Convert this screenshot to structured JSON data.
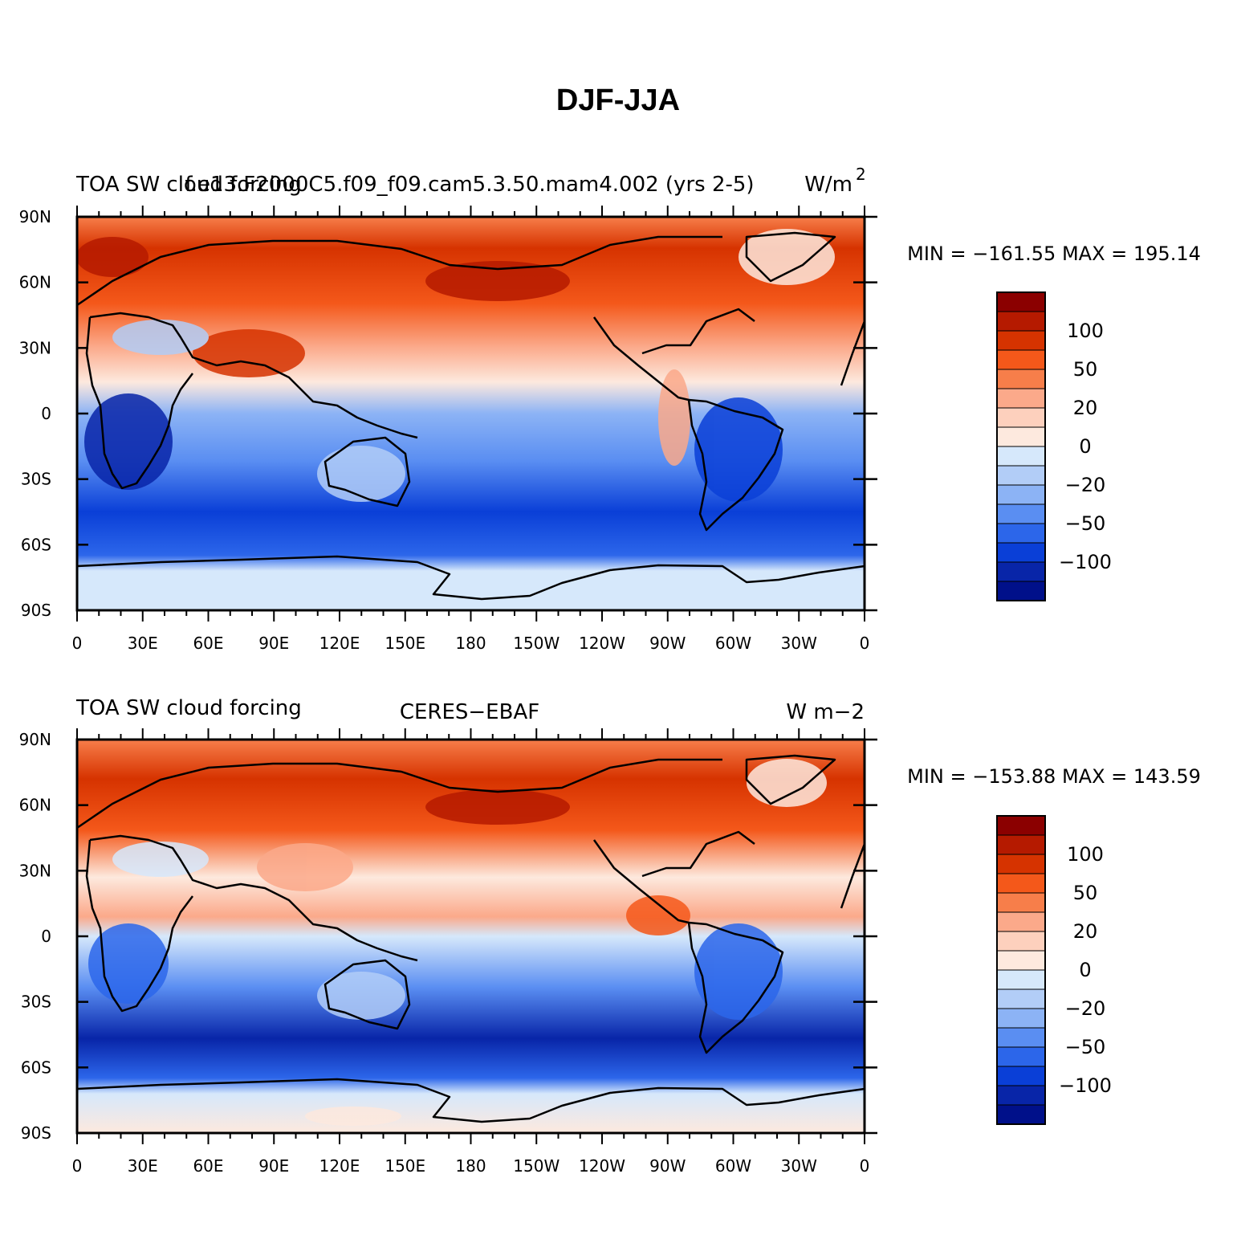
{
  "title": "DJF-JJA",
  "lat_labels": [
    "90N",
    "60N",
    "30N",
    "0",
    "30S",
    "60S",
    "90S"
  ],
  "lon_labels": [
    "0",
    "30E",
    "60E",
    "90E",
    "120E",
    "150E",
    "180",
    "150W",
    "120W",
    "90W",
    "60W",
    "30W",
    "0"
  ],
  "colorbar": {
    "colors": [
      "#8b0000",
      "#b51a00",
      "#d63300",
      "#f4581a",
      "#f77e4a",
      "#fba98a",
      "#fdd0bd",
      "#fde9de",
      "#d6e8fb",
      "#b2cdf7",
      "#8cb3f5",
      "#5a8ef2",
      "#2c66ea",
      "#0a3fd7",
      "#0825a8",
      "#00108a"
    ],
    "labels": [
      "100",
      "50",
      "20",
      "0",
      "−20",
      "−50",
      "−100"
    ]
  },
  "panels": [
    {
      "title_left": "TOA SW cloud forcing",
      "title_center": "f.e13.F2000C5.f09_f09.cam5.3.50.mam4.002 (yrs 2-5)",
      "units": "W/m",
      "units_sup": "2",
      "stats": "MIN = −161.55 MAX = 195.14"
    },
    {
      "title_left": "TOA SW cloud forcing",
      "title_center": "CERES−EBAF",
      "units": "W m−2",
      "units_sup": "",
      "stats": "MIN = −153.88 MAX = 143.59"
    }
  ]
}
